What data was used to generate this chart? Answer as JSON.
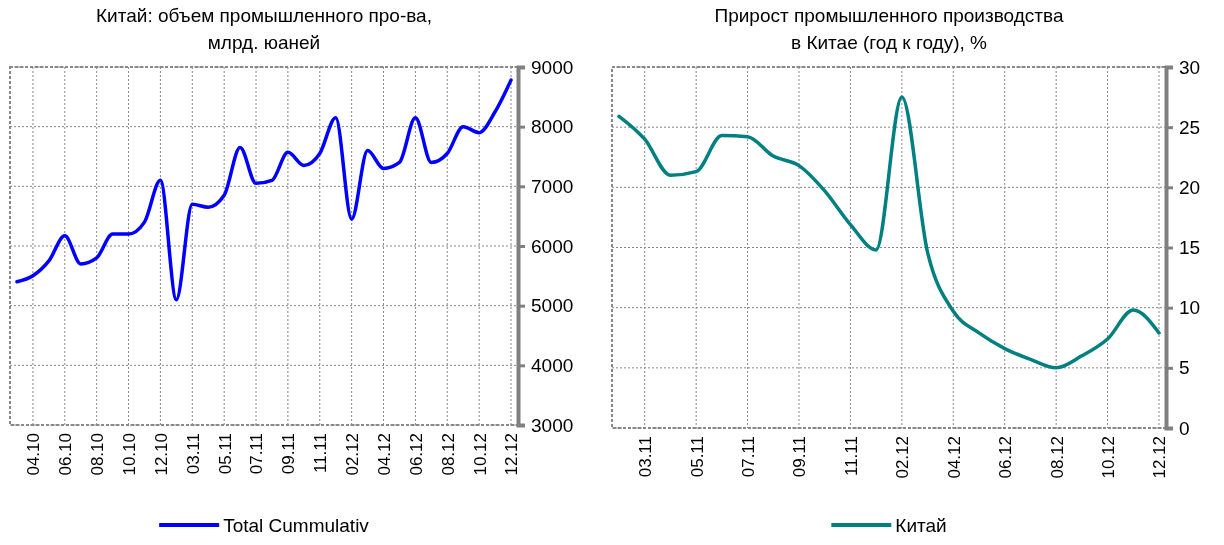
{
  "chart_data": [
    {
      "type": "line",
      "title": "Китай: объем промышленного про-ва,\nмлрд. юаней",
      "categories": [
        null,
        "04.10",
        null,
        "06.10",
        null,
        "08.10",
        null,
        "10.10",
        null,
        "12.10",
        null,
        "03.11",
        null,
        "05.11",
        null,
        "07.11",
        null,
        "09.11",
        null,
        "11.11",
        null,
        "02.12",
        null,
        "04.12",
        null,
        "06.12",
        null,
        "08.12",
        null,
        "10.12",
        null,
        "12.12"
      ],
      "series": [
        {
          "name": "Total Cummulativ",
          "color": "#0000ff",
          "values": [
            5400,
            5500,
            5750,
            6170,
            5700,
            5800,
            6200,
            6200,
            6400,
            7100,
            5100,
            6700,
            6650,
            6850,
            7650,
            7050,
            7100,
            7570,
            7350,
            7550,
            8150,
            6450,
            7600,
            7300,
            7400,
            8150,
            7400,
            7550,
            8000,
            7900,
            8250,
            8780
          ]
        }
      ],
      "ylim": [
        3000,
        9000
      ],
      "yticks": [
        3000,
        4000,
        5000,
        6000,
        7000,
        8000,
        9000
      ],
      "grid": true,
      "legend": "bottom",
      "marker": "none",
      "line_style": "solid"
    },
    {
      "type": "line",
      "title": "Прирост промышленного производства\nв Китае (год к году), %",
      "categories": [
        null,
        "03.11",
        null,
        "05.11",
        null,
        "07.11",
        null,
        "09.11",
        null,
        "11.11",
        null,
        "02.12",
        null,
        "04.12",
        null,
        "06.12",
        null,
        "08.12",
        null,
        "10.12",
        null,
        "12.12"
      ],
      "series": [
        {
          "name": "Китай",
          "color": "#008080",
          "values": [
            25.9,
            24.0,
            21.0,
            21.3,
            24.3,
            24.2,
            22.6,
            21.8,
            19.7,
            16.9,
            14.8,
            27.5,
            14.6,
            9.7,
            7.9,
            6.6,
            5.7,
            5.0,
            6.0,
            7.4,
            9.8,
            7.9
          ]
        }
      ],
      "ylim": [
        0,
        30
      ],
      "yticks": [
        0,
        5,
        10,
        15,
        20,
        25,
        30
      ],
      "grid": true,
      "legend": "bottom",
      "marker": "none",
      "line_style": "solid"
    }
  ]
}
